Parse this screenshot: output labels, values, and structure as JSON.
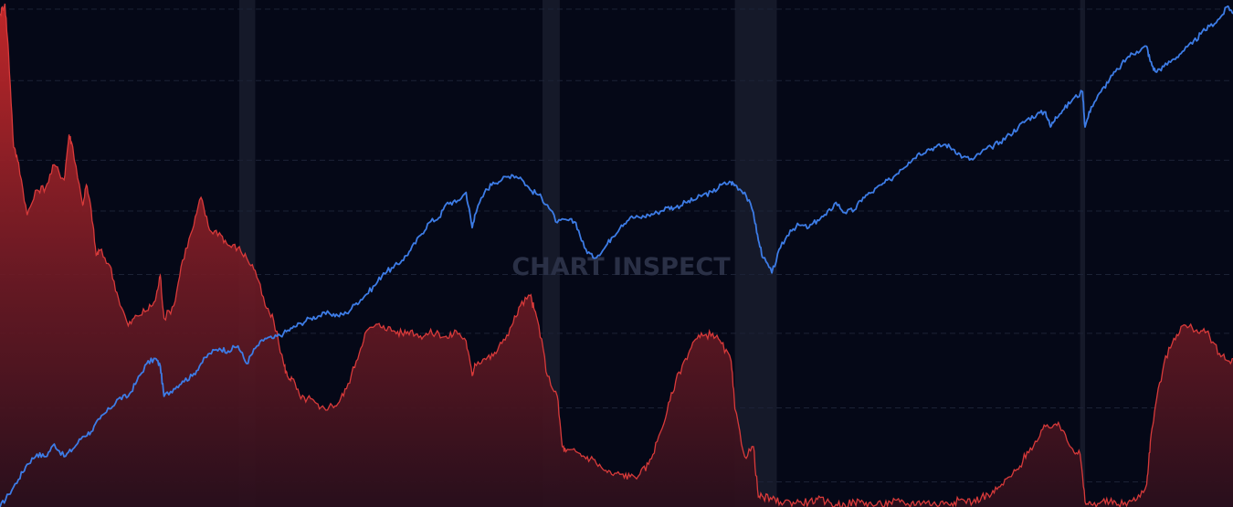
{
  "watermark": "CHART INSPECT",
  "chart_data": {
    "type": "line",
    "title": "",
    "xlabel": "",
    "ylabel": "",
    "grid": true,
    "legend": "none",
    "x_range": [
      0,
      100
    ],
    "y_range": [
      0,
      100
    ],
    "y_gridlines": [
      5.0,
      19.7,
      34.5,
      46.2,
      58.8,
      68.9,
      84.7,
      98.9
    ],
    "shaded_periods": [
      {
        "start": 19.4,
        "end": 20.7
      },
      {
        "start": 44.0,
        "end": 45.4
      },
      {
        "start": 59.6,
        "end": 63.0
      },
      {
        "start": 87.6,
        "end": 88.0
      }
    ],
    "series": [
      {
        "color": "#3d7ce6",
        "fill": false,
        "points": [
          [
            0.0,
            0.0
          ],
          [
            0.7,
            2.5
          ],
          [
            1.5,
            5.5
          ],
          [
            2.2,
            8.5
          ],
          [
            3.0,
            10.5
          ],
          [
            3.7,
            10.0
          ],
          [
            4.4,
            12.5
          ],
          [
            5.2,
            10.0
          ],
          [
            5.9,
            11.5
          ],
          [
            6.7,
            14.0
          ],
          [
            7.4,
            15.0
          ],
          [
            8.1,
            17.5
          ],
          [
            8.9,
            19.5
          ],
          [
            9.6,
            21.5
          ],
          [
            10.4,
            22.0
          ],
          [
            11.1,
            25.0
          ],
          [
            11.9,
            28.5
          ],
          [
            12.6,
            29.5
          ],
          [
            13.0,
            28.0
          ],
          [
            13.3,
            22.0
          ],
          [
            14.1,
            23.5
          ],
          [
            14.8,
            25.0
          ],
          [
            15.6,
            26.0
          ],
          [
            16.3,
            28.5
          ],
          [
            17.0,
            30.5
          ],
          [
            17.8,
            31.5
          ],
          [
            18.5,
            31.0
          ],
          [
            19.3,
            32.0
          ],
          [
            20.0,
            28.5
          ],
          [
            20.7,
            31.5
          ],
          [
            21.5,
            33.5
          ],
          [
            22.2,
            33.5
          ],
          [
            23.0,
            34.5
          ],
          [
            23.7,
            35.5
          ],
          [
            24.4,
            36.5
          ],
          [
            25.2,
            37.5
          ],
          [
            25.9,
            38.0
          ],
          [
            26.7,
            38.5
          ],
          [
            27.4,
            38.0
          ],
          [
            28.1,
            38.5
          ],
          [
            28.9,
            40.5
          ],
          [
            29.6,
            42.0
          ],
          [
            30.4,
            44.0
          ],
          [
            31.1,
            46.5
          ],
          [
            31.9,
            47.5
          ],
          [
            32.6,
            49.0
          ],
          [
            33.3,
            51.0
          ],
          [
            34.1,
            54.0
          ],
          [
            34.8,
            56.5
          ],
          [
            35.6,
            57.5
          ],
          [
            36.3,
            60.5
          ],
          [
            37.0,
            60.5
          ],
          [
            37.8,
            62.5
          ],
          [
            38.3,
            55.5
          ],
          [
            38.5,
            58.0
          ],
          [
            39.3,
            62.5
          ],
          [
            40.0,
            64.5
          ],
          [
            40.7,
            65.0
          ],
          [
            41.5,
            66.0
          ],
          [
            42.2,
            65.5
          ],
          [
            43.0,
            63.0
          ],
          [
            43.7,
            62.0
          ],
          [
            44.4,
            60.0
          ],
          [
            45.2,
            56.5
          ],
          [
            46.0,
            57.0
          ],
          [
            46.7,
            56.5
          ],
          [
            47.4,
            51.5
          ],
          [
            48.1,
            49.5
          ],
          [
            48.9,
            51.0
          ],
          [
            49.6,
            53.5
          ],
          [
            50.4,
            56.0
          ],
          [
            51.1,
            57.5
          ],
          [
            51.9,
            57.5
          ],
          [
            52.6,
            58.0
          ],
          [
            53.3,
            58.5
          ],
          [
            54.1,
            59.5
          ],
          [
            54.8,
            59.5
          ],
          [
            55.6,
            60.5
          ],
          [
            56.3,
            61.0
          ],
          [
            57.0,
            62.0
          ],
          [
            57.8,
            62.5
          ],
          [
            58.5,
            64.0
          ],
          [
            59.3,
            64.5
          ],
          [
            59.6,
            64.0
          ],
          [
            60.4,
            62.5
          ],
          [
            61.1,
            58.5
          ],
          [
            61.5,
            53.0
          ],
          [
            61.9,
            49.5
          ],
          [
            62.6,
            46.5
          ],
          [
            63.3,
            51.5
          ],
          [
            64.1,
            55.0
          ],
          [
            64.8,
            56.0
          ],
          [
            65.6,
            55.5
          ],
          [
            66.3,
            57.0
          ],
          [
            67.0,
            58.0
          ],
          [
            67.8,
            60.5
          ],
          [
            68.5,
            58.5
          ],
          [
            69.3,
            59.0
          ],
          [
            70.0,
            61.5
          ],
          [
            70.7,
            62.5
          ],
          [
            71.5,
            64.0
          ],
          [
            72.2,
            65.0
          ],
          [
            73.0,
            67.0
          ],
          [
            73.7,
            68.5
          ],
          [
            74.4,
            70.0
          ],
          [
            75.2,
            71.0
          ],
          [
            75.9,
            71.5
          ],
          [
            76.7,
            72.0
          ],
          [
            77.4,
            71.0
          ],
          [
            78.1,
            69.5
          ],
          [
            78.9,
            69.0
          ],
          [
            79.6,
            70.5
          ],
          [
            80.4,
            71.5
          ],
          [
            81.1,
            72.5
          ],
          [
            81.9,
            74.0
          ],
          [
            82.6,
            75.5
          ],
          [
            83.3,
            77.0
          ],
          [
            84.1,
            78.0
          ],
          [
            84.8,
            78.5
          ],
          [
            85.2,
            75.5
          ],
          [
            85.6,
            77.5
          ],
          [
            86.3,
            79.0
          ],
          [
            87.0,
            81.0
          ],
          [
            87.8,
            82.5
          ],
          [
            88.0,
            75.5
          ],
          [
            88.5,
            79.5
          ],
          [
            89.3,
            82.5
          ],
          [
            90.0,
            85.0
          ],
          [
            90.7,
            87.0
          ],
          [
            91.5,
            89.5
          ],
          [
            92.2,
            90.5
          ],
          [
            93.0,
            91.5
          ],
          [
            93.3,
            88.5
          ],
          [
            93.7,
            86.5
          ],
          [
            94.4,
            87.5
          ],
          [
            95.2,
            89.0
          ],
          [
            95.9,
            90.5
          ],
          [
            96.7,
            92.0
          ],
          [
            97.4,
            94.0
          ],
          [
            98.1,
            95.5
          ],
          [
            98.9,
            97.0
          ],
          [
            99.6,
            99.5
          ],
          [
            100.0,
            98.0
          ]
        ]
      },
      {
        "color": "#d83a3a",
        "fill": true,
        "points": [
          [
            0.0,
            98.0
          ],
          [
            0.4,
            100.0
          ],
          [
            0.7,
            90.0
          ],
          [
            1.1,
            71.5
          ],
          [
            1.5,
            68.5
          ],
          [
            2.2,
            58.0
          ],
          [
            3.0,
            63.0
          ],
          [
            3.7,
            63.5
          ],
          [
            4.4,
            68.0
          ],
          [
            5.2,
            65.0
          ],
          [
            5.6,
            74.0
          ],
          [
            5.9,
            71.5
          ],
          [
            6.7,
            60.0
          ],
          [
            7.0,
            64.0
          ],
          [
            7.4,
            59.0
          ],
          [
            7.8,
            50.0
          ],
          [
            8.1,
            51.0
          ],
          [
            8.9,
            48.0
          ],
          [
            9.6,
            41.5
          ],
          [
            10.4,
            36.0
          ],
          [
            11.1,
            38.0
          ],
          [
            11.9,
            39.0
          ],
          [
            12.6,
            41.0
          ],
          [
            13.0,
            46.0
          ],
          [
            13.3,
            37.5
          ],
          [
            14.1,
            40.0
          ],
          [
            14.8,
            49.0
          ],
          [
            15.6,
            55.0
          ],
          [
            16.3,
            61.5
          ],
          [
            17.0,
            55.0
          ],
          [
            17.8,
            54.5
          ],
          [
            18.5,
            52.0
          ],
          [
            19.3,
            51.5
          ],
          [
            20.0,
            49.5
          ],
          [
            20.7,
            47.0
          ],
          [
            21.5,
            40.0
          ],
          [
            22.2,
            37.0
          ],
          [
            23.0,
            28.5
          ],
          [
            23.3,
            26.0
          ],
          [
            23.7,
            25.5
          ],
          [
            24.4,
            21.5
          ],
          [
            25.2,
            21.5
          ],
          [
            25.9,
            19.5
          ],
          [
            26.7,
            20.0
          ],
          [
            27.4,
            20.5
          ],
          [
            28.1,
            23.5
          ],
          [
            28.9,
            29.0
          ],
          [
            29.6,
            34.5
          ],
          [
            30.4,
            36.0
          ],
          [
            31.1,
            36.0
          ],
          [
            31.9,
            35.0
          ],
          [
            32.6,
            34.5
          ],
          [
            33.3,
            35.0
          ],
          [
            34.1,
            34.0
          ],
          [
            34.8,
            34.5
          ],
          [
            35.6,
            34.5
          ],
          [
            36.3,
            33.5
          ],
          [
            37.0,
            35.0
          ],
          [
            37.8,
            33.0
          ],
          [
            38.3,
            26.0
          ],
          [
            38.5,
            28.5
          ],
          [
            39.3,
            29.5
          ],
          [
            40.0,
            30.0
          ],
          [
            40.7,
            32.5
          ],
          [
            41.5,
            36.0
          ],
          [
            42.2,
            40.0
          ],
          [
            43.0,
            42.0
          ],
          [
            43.3,
            39.5
          ],
          [
            43.7,
            36.0
          ],
          [
            44.4,
            26.0
          ],
          [
            45.2,
            22.0
          ],
          [
            45.6,
            12.0
          ],
          [
            45.9,
            11.0
          ],
          [
            46.7,
            11.0
          ],
          [
            47.4,
            10.0
          ],
          [
            48.1,
            9.5
          ],
          [
            48.9,
            7.5
          ],
          [
            49.6,
            6.5
          ],
          [
            50.4,
            6.5
          ],
          [
            51.1,
            6.0
          ],
          [
            51.9,
            6.5
          ],
          [
            52.6,
            8.5
          ],
          [
            53.3,
            13.0
          ],
          [
            54.1,
            19.0
          ],
          [
            54.8,
            25.0
          ],
          [
            55.6,
            29.5
          ],
          [
            56.3,
            33.0
          ],
          [
            57.0,
            34.0
          ],
          [
            57.8,
            34.5
          ],
          [
            58.5,
            32.5
          ],
          [
            59.3,
            29.0
          ],
          [
            59.6,
            19.5
          ],
          [
            60.4,
            10.0
          ],
          [
            61.1,
            12.0
          ],
          [
            61.5,
            2.0
          ],
          [
            61.9,
            2.0
          ],
          [
            62.6,
            1.5
          ],
          [
            63.3,
            1.0
          ],
          [
            64.1,
            1.0
          ],
          [
            64.8,
            1.0
          ],
          [
            65.6,
            1.0
          ],
          [
            66.3,
            1.5
          ],
          [
            67.0,
            1.0
          ],
          [
            67.8,
            0.5
          ],
          [
            68.5,
            0.5
          ],
          [
            69.3,
            1.0
          ],
          [
            70.0,
            1.0
          ],
          [
            70.7,
            0.5
          ],
          [
            71.5,
            0.5
          ],
          [
            72.2,
            1.0
          ],
          [
            73.0,
            1.0
          ],
          [
            73.7,
            0.5
          ],
          [
            74.4,
            1.0
          ],
          [
            75.2,
            1.0
          ],
          [
            75.9,
            0.5
          ],
          [
            76.7,
            1.0
          ],
          [
            77.4,
            1.0
          ],
          [
            78.1,
            1.5
          ],
          [
            78.9,
            1.0
          ],
          [
            79.6,
            2.0
          ],
          [
            80.4,
            2.5
          ],
          [
            81.1,
            4.0
          ],
          [
            81.9,
            6.0
          ],
          [
            82.6,
            7.5
          ],
          [
            83.3,
            11.0
          ],
          [
            84.1,
            13.0
          ],
          [
            84.8,
            16.0
          ],
          [
            85.6,
            16.5
          ],
          [
            86.3,
            15.0
          ],
          [
            87.0,
            11.5
          ],
          [
            87.6,
            10.5
          ],
          [
            88.0,
            1.0
          ],
          [
            88.5,
            0.5
          ],
          [
            89.3,
            1.0
          ],
          [
            90.0,
            1.0
          ],
          [
            90.7,
            0.5
          ],
          [
            91.5,
            1.0
          ],
          [
            92.2,
            1.5
          ],
          [
            93.0,
            4.5
          ],
          [
            93.3,
            13.0
          ],
          [
            93.7,
            20.0
          ],
          [
            94.4,
            28.5
          ],
          [
            95.2,
            33.5
          ],
          [
            95.9,
            36.0
          ],
          [
            96.7,
            35.5
          ],
          [
            97.4,
            35.0
          ],
          [
            98.1,
            34.0
          ],
          [
            98.9,
            30.5
          ],
          [
            99.6,
            29.0
          ],
          [
            100.0,
            29.5
          ]
        ]
      }
    ]
  }
}
